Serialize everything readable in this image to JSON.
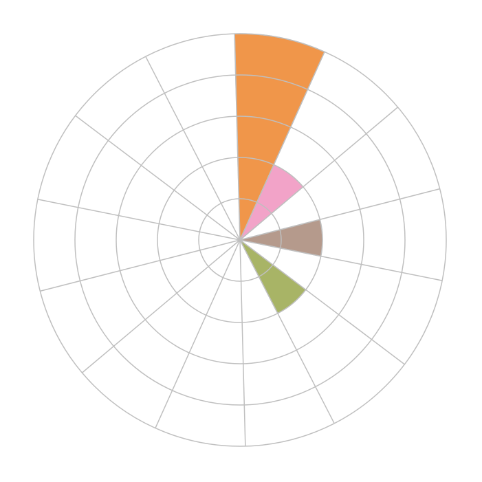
{
  "chart_data": {
    "type": "polar-bar",
    "sectors": 14,
    "rlim": [
      0,
      5
    ],
    "grid": true,
    "grid_color": "#bfbfbf",
    "series": [
      {
        "sector": 0,
        "value": 5,
        "color": "#f0964a"
      },
      {
        "sector": 1,
        "value": 2,
        "color": "#f2a3c8"
      },
      {
        "sector": 3,
        "value": 2,
        "color": "#b59a8c"
      },
      {
        "sector": 5,
        "value": 2,
        "color": "#a8b466"
      }
    ]
  }
}
